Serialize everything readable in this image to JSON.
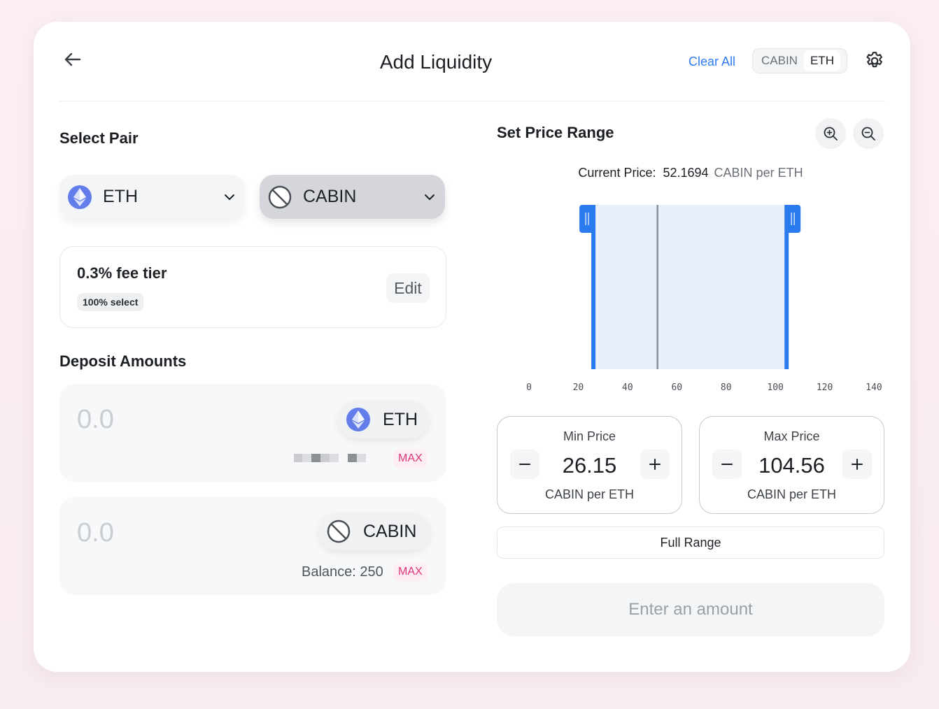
{
  "header": {
    "title": "Add Liquidity",
    "clear_all": "Clear All",
    "toggle": [
      "CABIN",
      "ETH"
    ],
    "toggle_active": "ETH"
  },
  "select_pair": {
    "heading": "Select Pair",
    "token_a": "ETH",
    "token_b": "CABIN"
  },
  "fee": {
    "title": "0.3% fee tier",
    "badge": "100% select",
    "edit": "Edit"
  },
  "deposit": {
    "heading": "Deposit Amounts",
    "eth": {
      "value": "0.0",
      "token": "ETH",
      "max": "MAX"
    },
    "cabin": {
      "value": "0.0",
      "token": "CABIN",
      "balance": "Balance: 250",
      "max": "MAX"
    }
  },
  "price_range": {
    "heading": "Set Price Range",
    "current_label": "Current Price:",
    "current_value": "52.1694",
    "current_unit": "CABIN per ETH",
    "min": {
      "label": "Min Price",
      "value": "26.15",
      "unit": "CABIN per ETH"
    },
    "max": {
      "label": "Max Price",
      "value": "104.56",
      "unit": "CABIN per ETH"
    },
    "full_range": "Full Range",
    "enter_amount": "Enter an amount"
  },
  "chart_data": {
    "type": "range-selector",
    "x_ticks": [
      0,
      20,
      40,
      60,
      80,
      100,
      120,
      140
    ],
    "xlim": [
      0,
      140
    ],
    "range_min": 26.15,
    "range_max": 104.56,
    "current_price": 52.1694
  },
  "colors": {
    "accent_blue": "#2f7cf6",
    "range_fill": "#e8f0fd",
    "handle_blue": "#2b7bf0",
    "max_pink": "#e0357a",
    "eth_purple": "#627eea"
  }
}
